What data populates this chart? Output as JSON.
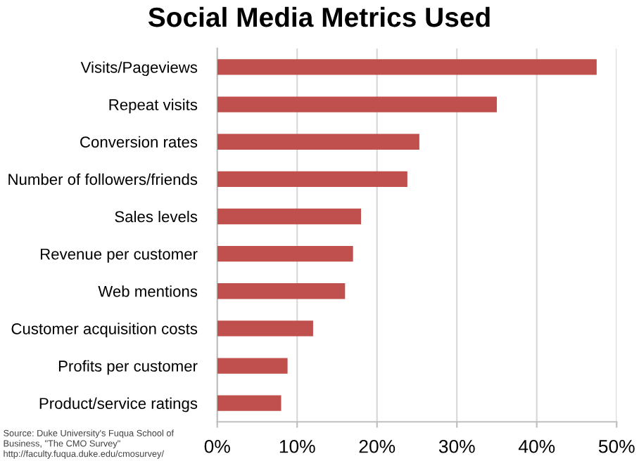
{
  "chart_data": {
    "type": "bar",
    "orientation": "horizontal",
    "title": "Social Media Metrics Used",
    "categories": [
      "Visits/Pageviews",
      "Repeat visits",
      "Conversion rates",
      "Number of followers/friends",
      "Sales levels",
      "Revenue per customer",
      "Web mentions",
      "Customer acquisition costs",
      "Profits per customer",
      "Product/service ratings"
    ],
    "values": [
      47.5,
      35,
      25.3,
      23.8,
      18,
      17,
      16,
      12,
      8.8,
      8
    ],
    "color": "#c0504d",
    "xlim": [
      0,
      50
    ],
    "xticks": [
      {
        "value": 0,
        "label": "0%"
      },
      {
        "value": 10,
        "label": "10%"
      },
      {
        "value": 20,
        "label": "20%"
      },
      {
        "value": 30,
        "label": "30%"
      },
      {
        "value": 40,
        "label": "40%"
      },
      {
        "value": 50,
        "label": "50%"
      }
    ],
    "grid": "x",
    "annotations": [
      "Source: Duke University's Fuqua School of\nBusiness, \"The CMO Survey\"\nhttp://faculty.fuqua.duke.edu/cmosurvey/"
    ]
  }
}
